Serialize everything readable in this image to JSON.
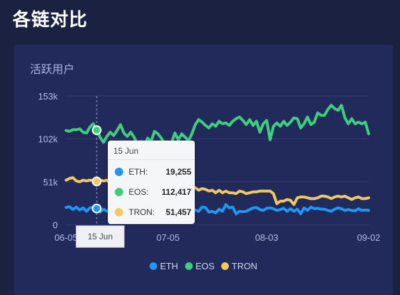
{
  "page": {
    "title": "各链对比"
  },
  "card": {
    "title": "活跃用户"
  },
  "colors": {
    "ETH": "#2196f3",
    "EOS": "#3ecf7e",
    "TRON": "#f2c960",
    "grid": "#323c74"
  },
  "chart_data": {
    "type": "line",
    "title": "活跃用户",
    "yticks": [
      "0",
      "51k",
      "102k",
      "153k"
    ],
    "ylim": [
      0,
      153000
    ],
    "xticks": [
      "06-05",
      "07-05",
      "08-03",
      "09-02"
    ],
    "xlim": [
      "2019-06-05",
      "2019-09-02"
    ],
    "grid": true,
    "legend_position": "bottom",
    "series": [
      {
        "name": "ETH",
        "values": [
          20500,
          21500,
          18000,
          21000,
          17500,
          20000,
          16000,
          20000,
          21000,
          19255,
          15000,
          18500,
          16000,
          19000,
          16000,
          19000,
          15000,
          20000,
          15000,
          17000,
          14000,
          20000,
          19000,
          21000,
          22000,
          18000,
          16000,
          19000,
          17000,
          16500,
          17000,
          20000,
          20000,
          19000,
          21000,
          20000,
          18000,
          16500,
          17500,
          16000,
          21000,
          20500,
          15000,
          16000,
          14000,
          18500,
          16000,
          24000,
          20000,
          21000,
          13000,
          16000,
          15500,
          16000,
          18000,
          20000,
          20500,
          18000,
          17000,
          19500,
          20000,
          19000,
          17000,
          18000,
          19500,
          16000,
          19000,
          16000,
          18500,
          13000,
          20000,
          17000,
          21000,
          19000,
          19500,
          18500,
          18500,
          17000,
          16000,
          18500,
          20000,
          19000,
          17000,
          18000,
          17000,
          16500,
          19000,
          17000,
          17500,
          17000
        ]
      },
      {
        "name": "EOS",
        "values": [
          112000,
          111000,
          113000,
          113000,
          114000,
          110000,
          109000,
          116000,
          120000,
          112417,
          104000,
          98000,
          105000,
          110000,
          106000,
          112000,
          119000,
          109000,
          105000,
          110000,
          104000,
          96000,
          99000,
          94000,
          103000,
          99000,
          111000,
          108000,
          103000,
          96000,
          95000,
          97000,
          109000,
          101000,
          108000,
          104000,
          100000,
          108000,
          119000,
          125000,
          122000,
          118000,
          115000,
          120000,
          117000,
          123000,
          120000,
          121000,
          118000,
          123000,
          126000,
          128000,
          124000,
          119000,
          125000,
          118000,
          123000,
          110000,
          120000,
          124000,
          101000,
          117000,
          121000,
          117000,
          123000,
          118000,
          122000,
          127000,
          126000,
          115000,
          120000,
          128000,
          119000,
          122000,
          133000,
          130000,
          130000,
          137000,
          142000,
          138000,
          136000,
          142000,
          127000,
          120000,
          126000,
          120000,
          122000,
          120000,
          122000,
          108000
        ]
      },
      {
        "name": "TRON",
        "values": [
          53000,
          55000,
          56000,
          52000,
          51000,
          53000,
          52000,
          53000,
          52500,
          51457,
          53000,
          52000,
          53000,
          49000,
          51000,
          52000,
          51000,
          53000,
          49000,
          53000,
          55000,
          52000,
          51000,
          49000,
          52000,
          48000,
          50000,
          49000,
          47000,
          48000,
          47000,
          48000,
          53000,
          52000,
          51000,
          42000,
          45000,
          46000,
          44000,
          41000,
          43000,
          42000,
          40000,
          41000,
          38000,
          41000,
          38000,
          40000,
          38000,
          38000,
          37000,
          40000,
          39000,
          37000,
          38000,
          39000,
          39000,
          40000,
          40000,
          40000,
          40000,
          37000,
          25000,
          28000,
          28000,
          30000,
          29000,
          24000,
          32000,
          33000,
          33000,
          32000,
          31000,
          31000,
          32000,
          34000,
          34000,
          33000,
          31000,
          33000,
          34000,
          33000,
          34000,
          32000,
          30000,
          32000,
          33000,
          31000,
          31000,
          32000
        ]
      }
    ]
  },
  "tooltip": {
    "date": "15 Jun",
    "rows": [
      {
        "name": "ETH:",
        "value": "19,255"
      },
      {
        "name": "EOS:",
        "value": "112,417"
      },
      {
        "name": "TRON:",
        "value": "51,457"
      }
    ]
  },
  "cursor_label": "15 Jun",
  "legend": [
    "ETH",
    "EOS",
    "TRON"
  ]
}
